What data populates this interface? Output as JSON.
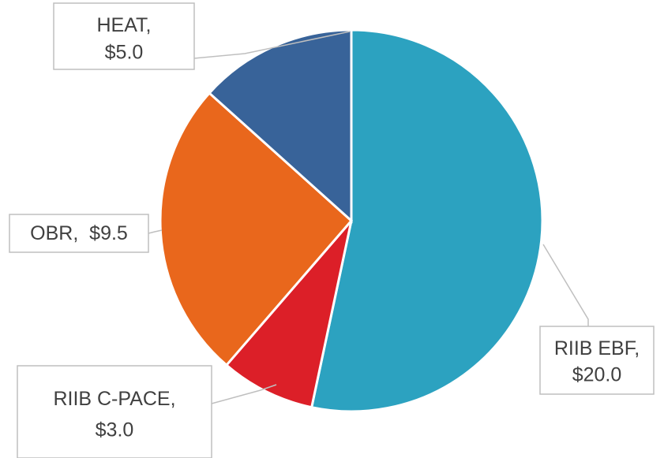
{
  "chart_data": {
    "type": "pie",
    "categories": [
      "RIIB EBF",
      "RIIB C-PACE",
      "OBR",
      "HEAT"
    ],
    "values": [
      20.0,
      3.0,
      9.5,
      5.0
    ],
    "value_labels": [
      "$20.0",
      "$3.0",
      "$9.5",
      "$5.0"
    ],
    "colors": [
      "#2ca2c0",
      "#dc1f28",
      "#e9671c",
      "#386399"
    ]
  }
}
